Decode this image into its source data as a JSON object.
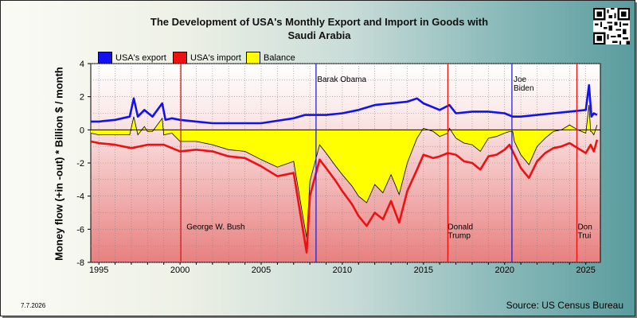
{
  "page": {
    "title": "The Development of USA's Monthly Export and Import in Goods with\nSaudi Arabia",
    "date": "7.7.2026",
    "source": "Source: US Census Bureau"
  },
  "colors": {
    "export": "#1212ee",
    "import": "#ee1111",
    "balance": "#ffff00",
    "event": "#ee1111",
    "event_obama": "#2222dd",
    "event_biden": "#2222dd"
  },
  "chart_data": {
    "type": "line",
    "title": "The Development of USA's Monthly Export and Import in Goods with Saudi Arabia",
    "ylabel": "Money flow (+in -out) * Billion $ / month",
    "xlabel": "",
    "xlim": [
      1994.5,
      2025.9
    ],
    "ylim": [
      -8,
      4
    ],
    "xticks": [
      1995,
      2000,
      2005,
      2010,
      2015,
      2020,
      2025
    ],
    "yticks": [
      4,
      2,
      0,
      -2,
      -4,
      -6,
      -8
    ],
    "grid": true,
    "legend_position": "top-left",
    "legend": [
      "USA's export",
      "USA's import",
      "Balance"
    ],
    "series": [
      {
        "name": "USA's export",
        "x": [
          1994.5,
          1995,
          1996,
          1996.9,
          1997.15,
          1997.4,
          1997.8,
          1998.3,
          1998.9,
          1999.1,
          1999.5,
          2000,
          2001,
          2002,
          2003,
          2004,
          2005,
          2006,
          2007,
          2007.7,
          2008,
          2009,
          2010,
          2011,
          2012,
          2013,
          2014,
          2014.6,
          2015,
          2016,
          2016.6,
          2017,
          2018,
          2019,
          2020,
          2020.5,
          2021,
          2022,
          2023,
          2024,
          2025,
          2025.2,
          2025.35,
          2025.5,
          2025.7
        ],
        "values": [
          0.5,
          0.5,
          0.6,
          0.8,
          1.9,
          0.8,
          1.2,
          0.8,
          1.6,
          0.6,
          0.7,
          0.6,
          0.5,
          0.4,
          0.4,
          0.4,
          0.4,
          0.55,
          0.7,
          0.9,
          0.9,
          0.9,
          1.0,
          1.2,
          1.5,
          1.6,
          1.7,
          1.9,
          1.6,
          1.2,
          1.5,
          1.0,
          1.1,
          1.1,
          1.0,
          0.8,
          0.8,
          0.9,
          1.0,
          1.1,
          1.2,
          2.7,
          0.8,
          1.0,
          0.9
        ]
      },
      {
        "name": "USA's import",
        "x": [
          1994.5,
          1995,
          1996,
          1997,
          1998,
          1999,
          2000,
          2001,
          2002,
          2003,
          2004,
          2005,
          2006,
          2007,
          2007.6,
          2007.8,
          2008,
          2008.6,
          2009,
          2009.6,
          2010,
          2010.6,
          2011,
          2011.5,
          2012,
          2012.5,
          2013,
          2013.5,
          2014,
          2014.6,
          2015,
          2015.6,
          2016,
          2016.5,
          2017,
          2017.5,
          2018,
          2018.5,
          2019,
          2019.5,
          2020,
          2020.3,
          2020.6,
          2021,
          2021.5,
          2022,
          2022.5,
          2023,
          2023.5,
          2024,
          2024.5,
          2025,
          2025.3,
          2025.5,
          2025.7
        ],
        "values": [
          -0.7,
          -0.8,
          -0.9,
          -1.1,
          -0.9,
          -0.9,
          -1.3,
          -1.2,
          -1.3,
          -1.6,
          -1.7,
          -2.2,
          -2.8,
          -2.6,
          -6.2,
          -7.4,
          -4.0,
          -1.8,
          -2.3,
          -3.1,
          -3.7,
          -4.5,
          -5.2,
          -5.8,
          -5.0,
          -5.4,
          -4.3,
          -5.6,
          -3.7,
          -2.4,
          -1.5,
          -1.7,
          -1.6,
          -1.4,
          -1.5,
          -1.9,
          -2.0,
          -2.4,
          -1.6,
          -1.5,
          -1.2,
          -0.9,
          -1.5,
          -2.3,
          -2.9,
          -1.9,
          -1.4,
          -1.1,
          -1.0,
          -0.8,
          -1.1,
          -1.4,
          -0.9,
          -1.3,
          -0.6
        ]
      },
      {
        "name": "Balance",
        "x": [
          1994.5,
          1995,
          1996,
          1996.9,
          1997.15,
          1997.4,
          1997.8,
          1998,
          1998.3,
          1998.9,
          1999,
          1999.5,
          2000,
          2001,
          2002,
          2003,
          2004,
          2005,
          2006,
          2007,
          2007.6,
          2007.8,
          2008,
          2008.6,
          2009,
          2009.6,
          2010,
          2010.6,
          2011,
          2011.5,
          2012,
          2012.5,
          2013,
          2013.5,
          2014,
          2014.6,
          2015,
          2015.6,
          2016,
          2016.5,
          2016.6,
          2017,
          2017.5,
          2018,
          2018.5,
          2019,
          2019.5,
          2020,
          2020.3,
          2020.5,
          2020.6,
          2021,
          2021.5,
          2022,
          2022.5,
          2023,
          2023.5,
          2024,
          2024.5,
          2025,
          2025.2,
          2025.3,
          2025.35,
          2025.5,
          2025.7
        ],
        "values": [
          -0.2,
          -0.3,
          -0.3,
          -0.3,
          0.8,
          -0.3,
          0.2,
          -0.1,
          -0.1,
          0.7,
          -0.3,
          -0.2,
          -0.7,
          -0.7,
          -0.9,
          -1.2,
          -1.3,
          -1.8,
          -2.25,
          -1.9,
          -5.4,
          -6.5,
          -3.1,
          -0.9,
          -1.4,
          -2.2,
          -2.7,
          -3.4,
          -4.0,
          -4.4,
          -3.3,
          -3.8,
          -2.7,
          -3.9,
          -2.0,
          -0.5,
          0.1,
          -0.1,
          -0.4,
          -0.2,
          0.1,
          -0.5,
          -0.8,
          -0.9,
          -1.3,
          -0.5,
          -0.4,
          -0.2,
          -0.1,
          -0.1,
          -0.7,
          -1.5,
          -2.1,
          -1.0,
          -0.5,
          -0.1,
          0.0,
          0.3,
          0.0,
          -0.2,
          1.5,
          -0.1,
          -0.1,
          -0.3,
          0.3
        ]
      }
    ],
    "events": [
      {
        "x": 2000.05,
        "label": "George W. Bush",
        "color": "event",
        "label_x": 2000.4,
        "label_y": -6
      },
      {
        "x": 2008.38,
        "label": "Barak Obama",
        "color": "event_obama",
        "label_x": 2008.45,
        "label_y": 2.9
      },
      {
        "x": 2016.5,
        "label": "Donald\nTrump",
        "color": "event",
        "label_x": 2016.5,
        "label_y": -6
      },
      {
        "x": 2020.45,
        "label": "Joe\nBiden",
        "color": "event_biden",
        "label_x": 2020.55,
        "label_y": 2.9
      },
      {
        "x": 2024.45,
        "label": "Don\nTrui",
        "color": "event",
        "label_x": 2024.5,
        "label_y": -6
      }
    ]
  }
}
